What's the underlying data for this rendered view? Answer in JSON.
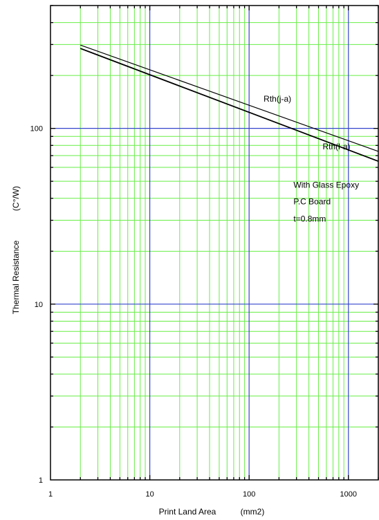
{
  "chart_data": {
    "type": "line",
    "xscale": "log",
    "yscale": "log",
    "xlim": [
      1,
      2000
    ],
    "ylim": [
      1,
      500
    ],
    "xlabel": "Print Land Area",
    "xunit": "(mm2)",
    "ylabel": "Thermal Resistance",
    "yunit": "(C°/W)",
    "xticks": [
      {
        "value": 1,
        "label": "1"
      },
      {
        "value": 10,
        "label": "10"
      },
      {
        "value": 100,
        "label": "100"
      },
      {
        "value": 1000,
        "label": "1000"
      }
    ],
    "yticks": [
      {
        "value": 1,
        "label": "1"
      },
      {
        "value": 10,
        "label": "10"
      },
      {
        "value": 100,
        "label": "100"
      }
    ],
    "grid": true,
    "series": [
      {
        "name": "Rth(j-a)",
        "x": [
          2,
          2000
        ],
        "y": [
          298,
          74
        ],
        "color": "#000000"
      },
      {
        "name": "Rth(l-a)",
        "x": [
          2,
          2000
        ],
        "y": [
          285,
          65
        ],
        "color": "#000000"
      }
    ],
    "annotations": [
      {
        "text": "Rth(j-a)",
        "x": 140,
        "y": 142
      },
      {
        "text": "Rth(l-a)",
        "x": 550,
        "y": 76
      },
      {
        "text": "With Glass Epoxy",
        "x": 280,
        "y": 46
      },
      {
        "text": "P.C Board",
        "x": 280,
        "y": 37
      },
      {
        "text": "t=0.8mm",
        "x": 280,
        "y": 29.5
      }
    ],
    "colors": {
      "minor_grid": "#66ee44",
      "major_grid": "#3344cc",
      "frame": "#000000"
    }
  }
}
